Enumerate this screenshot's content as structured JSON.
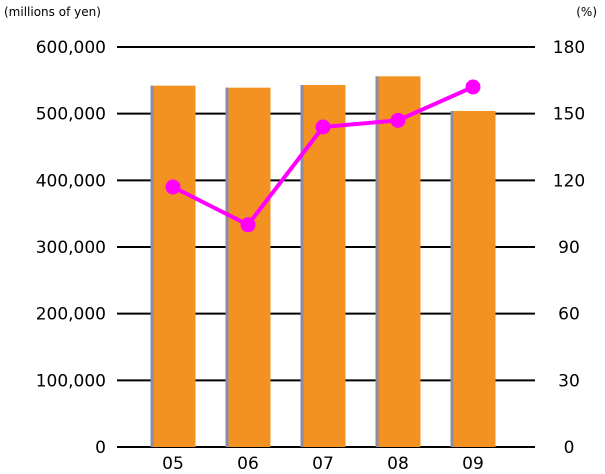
{
  "chart_data": {
    "type": "bar",
    "categories": [
      "05",
      "06",
      "07",
      "08",
      "09"
    ],
    "series": [
      {
        "kind": "bar",
        "axis": "left",
        "color": "#F39220",
        "values": [
          542000,
          539000,
          543000,
          556000,
          504000
        ]
      },
      {
        "kind": "line",
        "axis": "right",
        "color": "#FF00FF",
        "values": [
          117,
          100,
          144,
          147,
          162
        ]
      }
    ],
    "left_axis": {
      "unit": "(millions of yen)",
      "ylim": [
        0,
        600000
      ],
      "ticks": [
        "0",
        "100,000",
        "200,000",
        "300,000",
        "400,000",
        "500,000",
        "600,000"
      ]
    },
    "right_axis": {
      "unit": "(%)",
      "ylim": [
        0,
        180
      ],
      "ticks": [
        "0",
        "30",
        "60",
        "90",
        "120",
        "150",
        "180"
      ]
    },
    "grid": true,
    "legend": "none"
  }
}
